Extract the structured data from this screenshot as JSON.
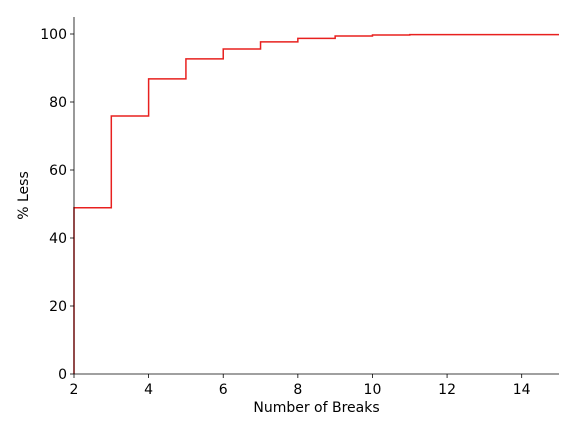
{
  "chart_data": {
    "type": "line",
    "step": "post",
    "xlabel": "Number of Breaks",
    "ylabel": "% Less",
    "xlim": [
      2,
      15
    ],
    "ylim": [
      0,
      105
    ],
    "xticks": [
      2,
      4,
      6,
      8,
      10,
      12,
      14
    ],
    "yticks": [
      0,
      20,
      40,
      60,
      80,
      100
    ],
    "grid": false,
    "spines": [
      "left",
      "bottom"
    ],
    "series": [
      {
        "color": "#e8201f",
        "x": [
          2,
          3,
          4,
          5,
          6,
          7,
          8,
          9,
          10,
          11,
          12,
          13,
          14,
          15
        ],
        "y": [
          48.9,
          75.9,
          86.8,
          92.7,
          95.6,
          97.7,
          98.7,
          99.4,
          99.7,
          99.8,
          99.8,
          99.8,
          99.8,
          99.8
        ]
      }
    ]
  }
}
